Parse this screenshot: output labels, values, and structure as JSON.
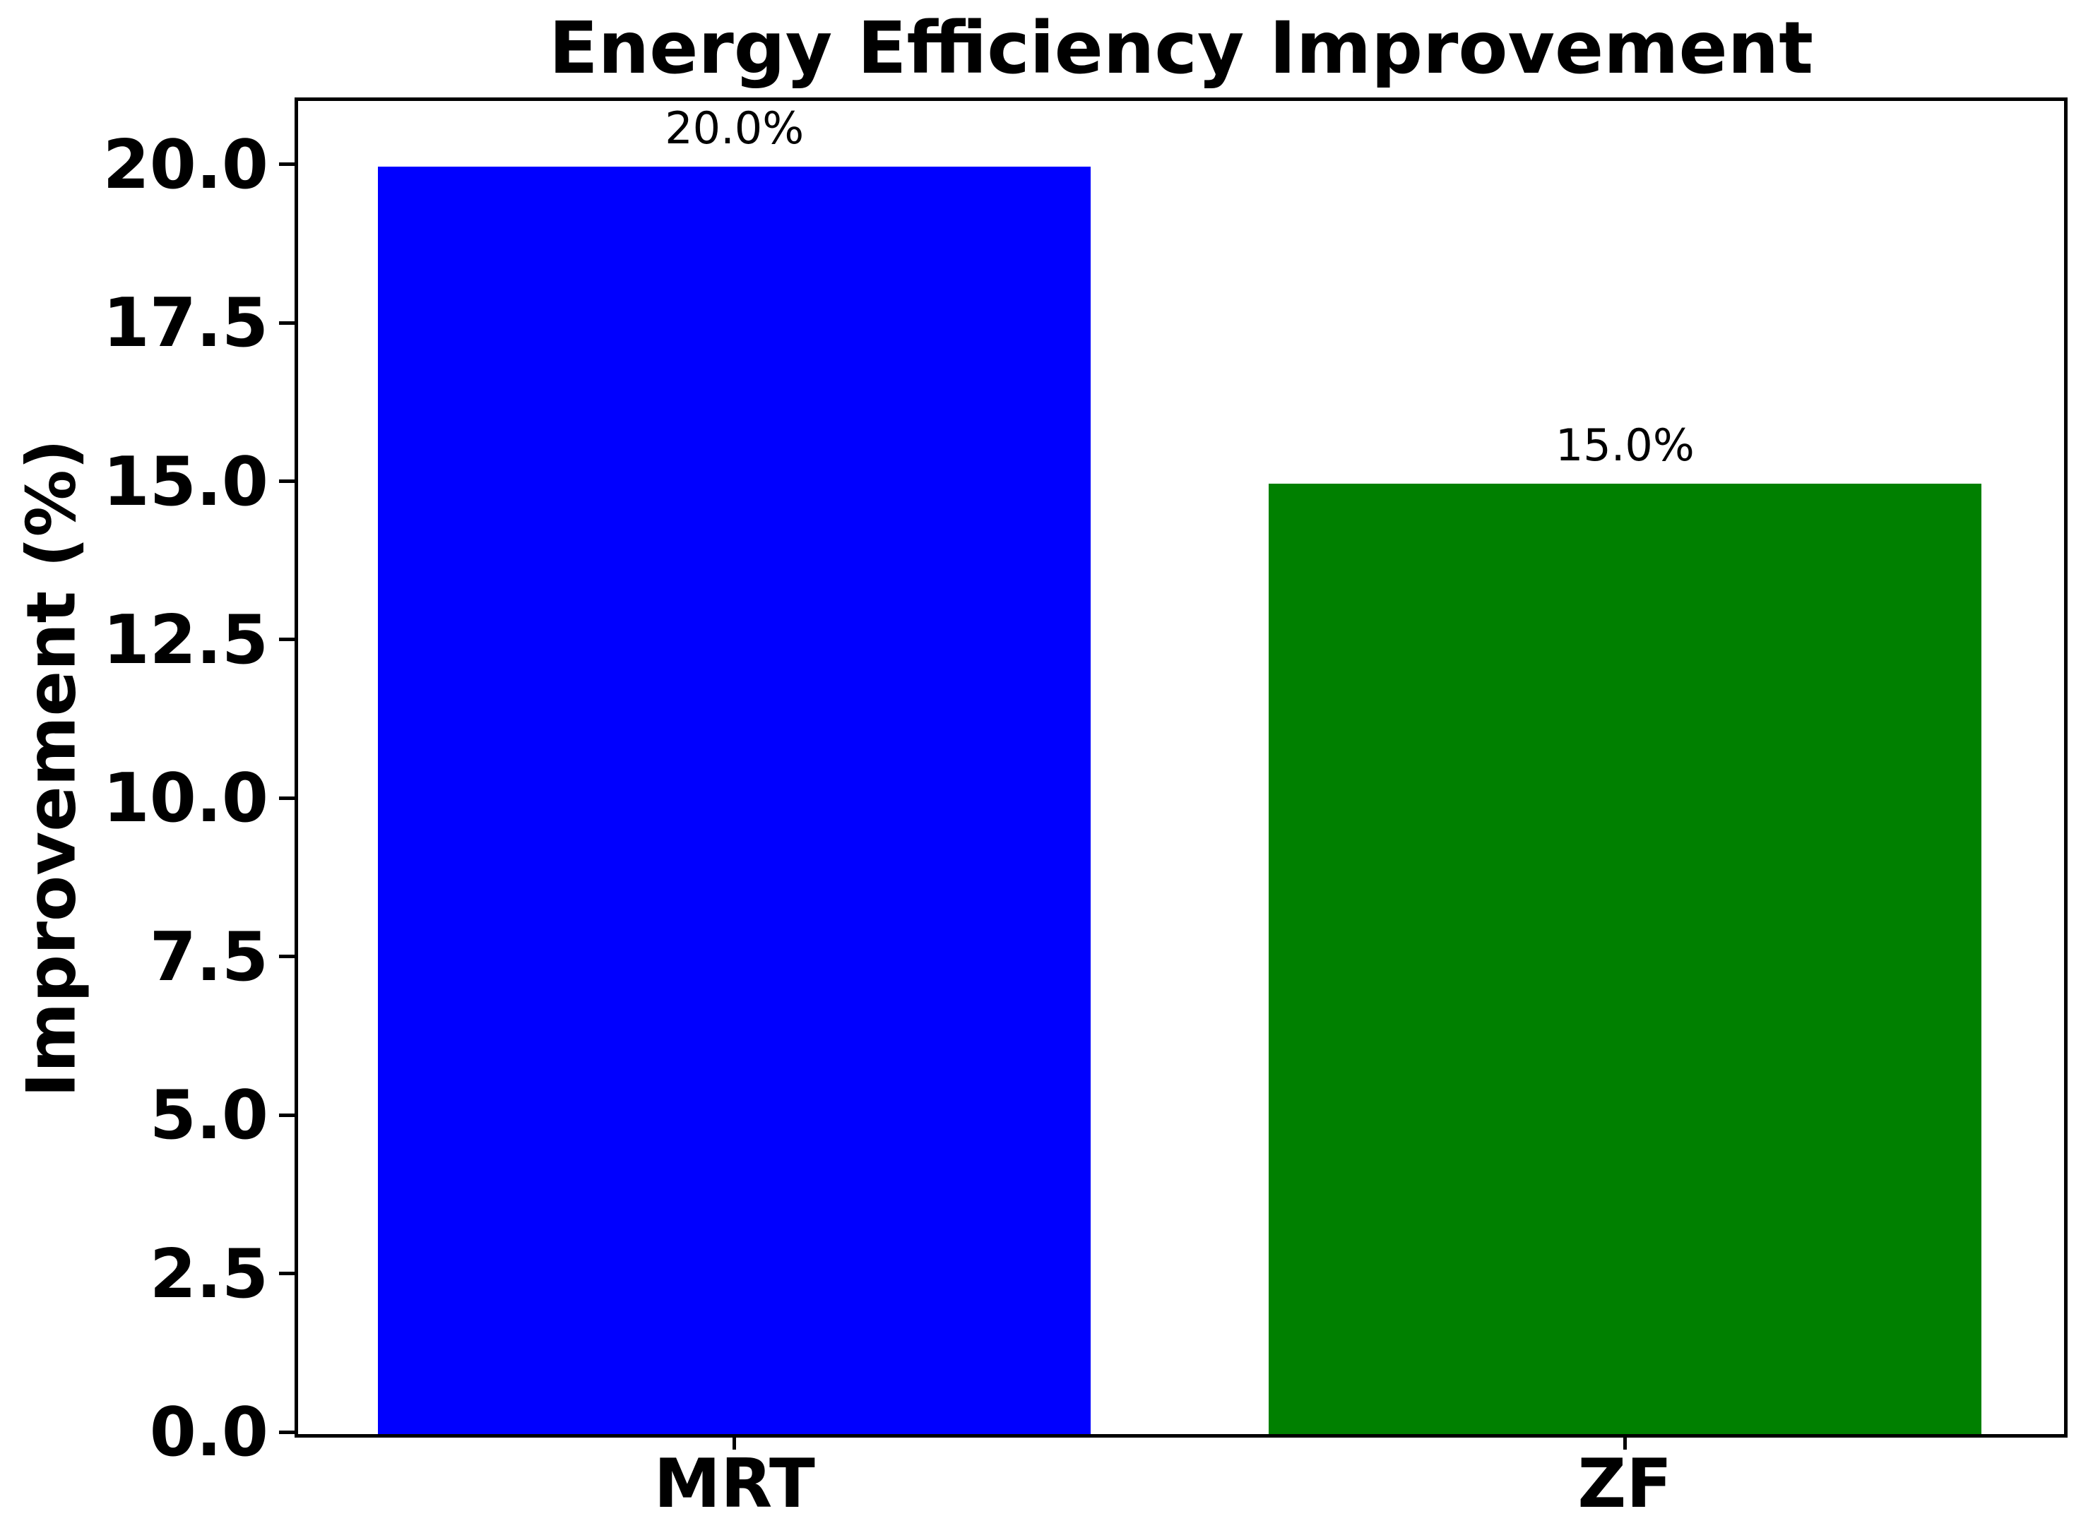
{
  "chart_data": {
    "type": "bar",
    "title": "Energy Efficiency Improvement",
    "xlabel": "",
    "ylabel": "Improvement (%)",
    "categories": [
      "MRT",
      "ZF"
    ],
    "values": [
      20.0,
      15.0
    ],
    "bar_labels": [
      "20.0%",
      "15.0%"
    ],
    "bar_colors": [
      "#0000ff",
      "#008000"
    ],
    "yticks": [
      "0.0",
      "2.5",
      "5.0",
      "7.5",
      "10.0",
      "12.5",
      "15.0",
      "17.5",
      "20.0"
    ],
    "ylim": [
      0,
      21
    ],
    "bar_width_ratio": 0.8,
    "grid": false,
    "legend": false,
    "text_color": "#000000",
    "background_color": "#ffffff"
  }
}
